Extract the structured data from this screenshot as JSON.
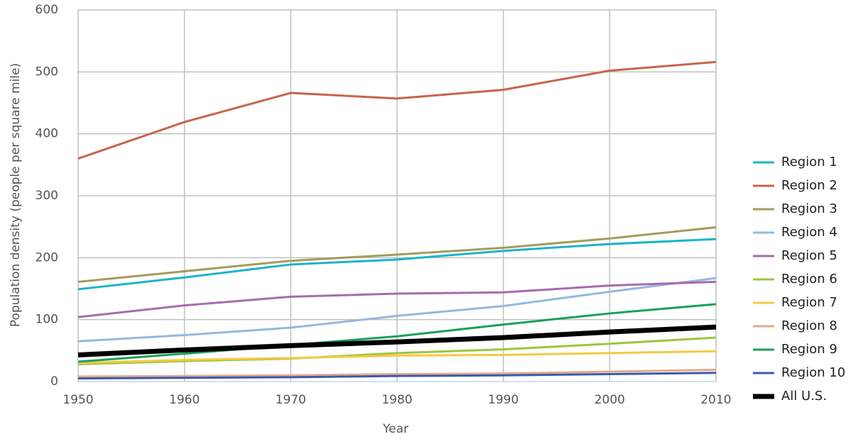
{
  "chart_data": {
    "type": "line",
    "x_label": "Year",
    "y_label": "Population density (people per square mile)",
    "x": [
      1950,
      1960,
      1970,
      1980,
      1990,
      2000,
      2010
    ],
    "xlim": [
      1950,
      2010
    ],
    "xticks": [
      1950,
      1960,
      1970,
      1980,
      1990,
      2000,
      2010
    ],
    "ylim": [
      0,
      600
    ],
    "yticks": [
      0,
      100,
      200,
      300,
      400,
      500,
      600
    ],
    "grid": true,
    "legend": "right",
    "series": [
      {
        "name": "Region 1",
        "color": "#1bb4c9",
        "linewidth": 3,
        "values": [
          149,
          168,
          189,
          197,
          211,
          222,
          230
        ]
      },
      {
        "name": "Region 2",
        "color": "#c6654a",
        "linewidth": 3,
        "values": [
          360,
          419,
          466,
          457,
          471,
          502,
          516
        ]
      },
      {
        "name": "Region 3",
        "color": "#a39c5b",
        "linewidth": 3,
        "values": [
          161,
          178,
          195,
          205,
          216,
          231,
          249
        ]
      },
      {
        "name": "Region 4",
        "color": "#93b9e0",
        "linewidth": 3,
        "values": [
          65,
          75,
          87,
          106,
          122,
          145,
          167
        ]
      },
      {
        "name": "Region 5",
        "color": "#a86aae",
        "linewidth": 3,
        "values": [
          104,
          123,
          137,
          142,
          144,
          155,
          161
        ]
      },
      {
        "name": "Region 6",
        "color": "#9cc63f",
        "linewidth": 3,
        "values": [
          28,
          33,
          37,
          46,
          52,
          61,
          71
        ]
      },
      {
        "name": "Region 7",
        "color": "#f6c944",
        "linewidth": 3,
        "values": [
          30,
          35,
          38,
          42,
          43,
          46,
          49
        ]
      },
      {
        "name": "Region 8",
        "color": "#e4a98f",
        "linewidth": 3,
        "values": [
          8,
          9,
          10,
          12,
          13,
          16,
          19
        ]
      },
      {
        "name": "Region 9",
        "color": "#17a15a",
        "linewidth": 3,
        "values": [
          32,
          45,
          59,
          73,
          92,
          110,
          125
        ]
      },
      {
        "name": "Region 10",
        "color": "#3b5ca8",
        "linewidth": 3,
        "values": [
          5,
          6,
          7,
          9,
          10,
          12,
          14
        ]
      },
      {
        "name": "All U.S.",
        "color": "#000000",
        "linewidth": 7,
        "values": [
          43,
          51,
          58,
          64,
          71,
          80,
          88
        ]
      }
    ]
  }
}
